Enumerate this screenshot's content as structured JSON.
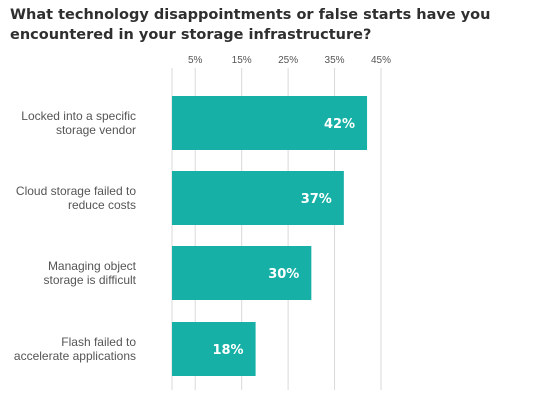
{
  "chart_data": {
    "type": "bar",
    "orientation": "horizontal",
    "title": "What technology disappointments or false starts have you encountered in your storage infrastructure?",
    "categories": [
      "Locked into a specific storage vendor",
      "Cloud storage failed to reduce costs",
      "Managing object storage is difficult",
      "Flash failed to accelerate applications"
    ],
    "category_lines": [
      [
        "Locked into a specific",
        "storage vendor"
      ],
      [
        "Cloud storage failed to",
        "reduce costs"
      ],
      [
        "Managing object",
        "storage is difficult"
      ],
      [
        "Flash failed to",
        "accelerate applications"
      ]
    ],
    "values": [
      42,
      37,
      30,
      18
    ],
    "value_labels": [
      "42%",
      "37%",
      "30%",
      "18%"
    ],
    "x_ticks": [
      5,
      15,
      25,
      35,
      45
    ],
    "x_tick_labels": [
      "5%",
      "15%",
      "25%",
      "35%",
      "45%"
    ],
    "xlim": [
      0,
      45
    ],
    "xlabel": "",
    "ylabel": "",
    "grid": true,
    "legend": "none",
    "colors": {
      "bar": "#17b0a6",
      "grid": "#d9d9d9"
    }
  }
}
